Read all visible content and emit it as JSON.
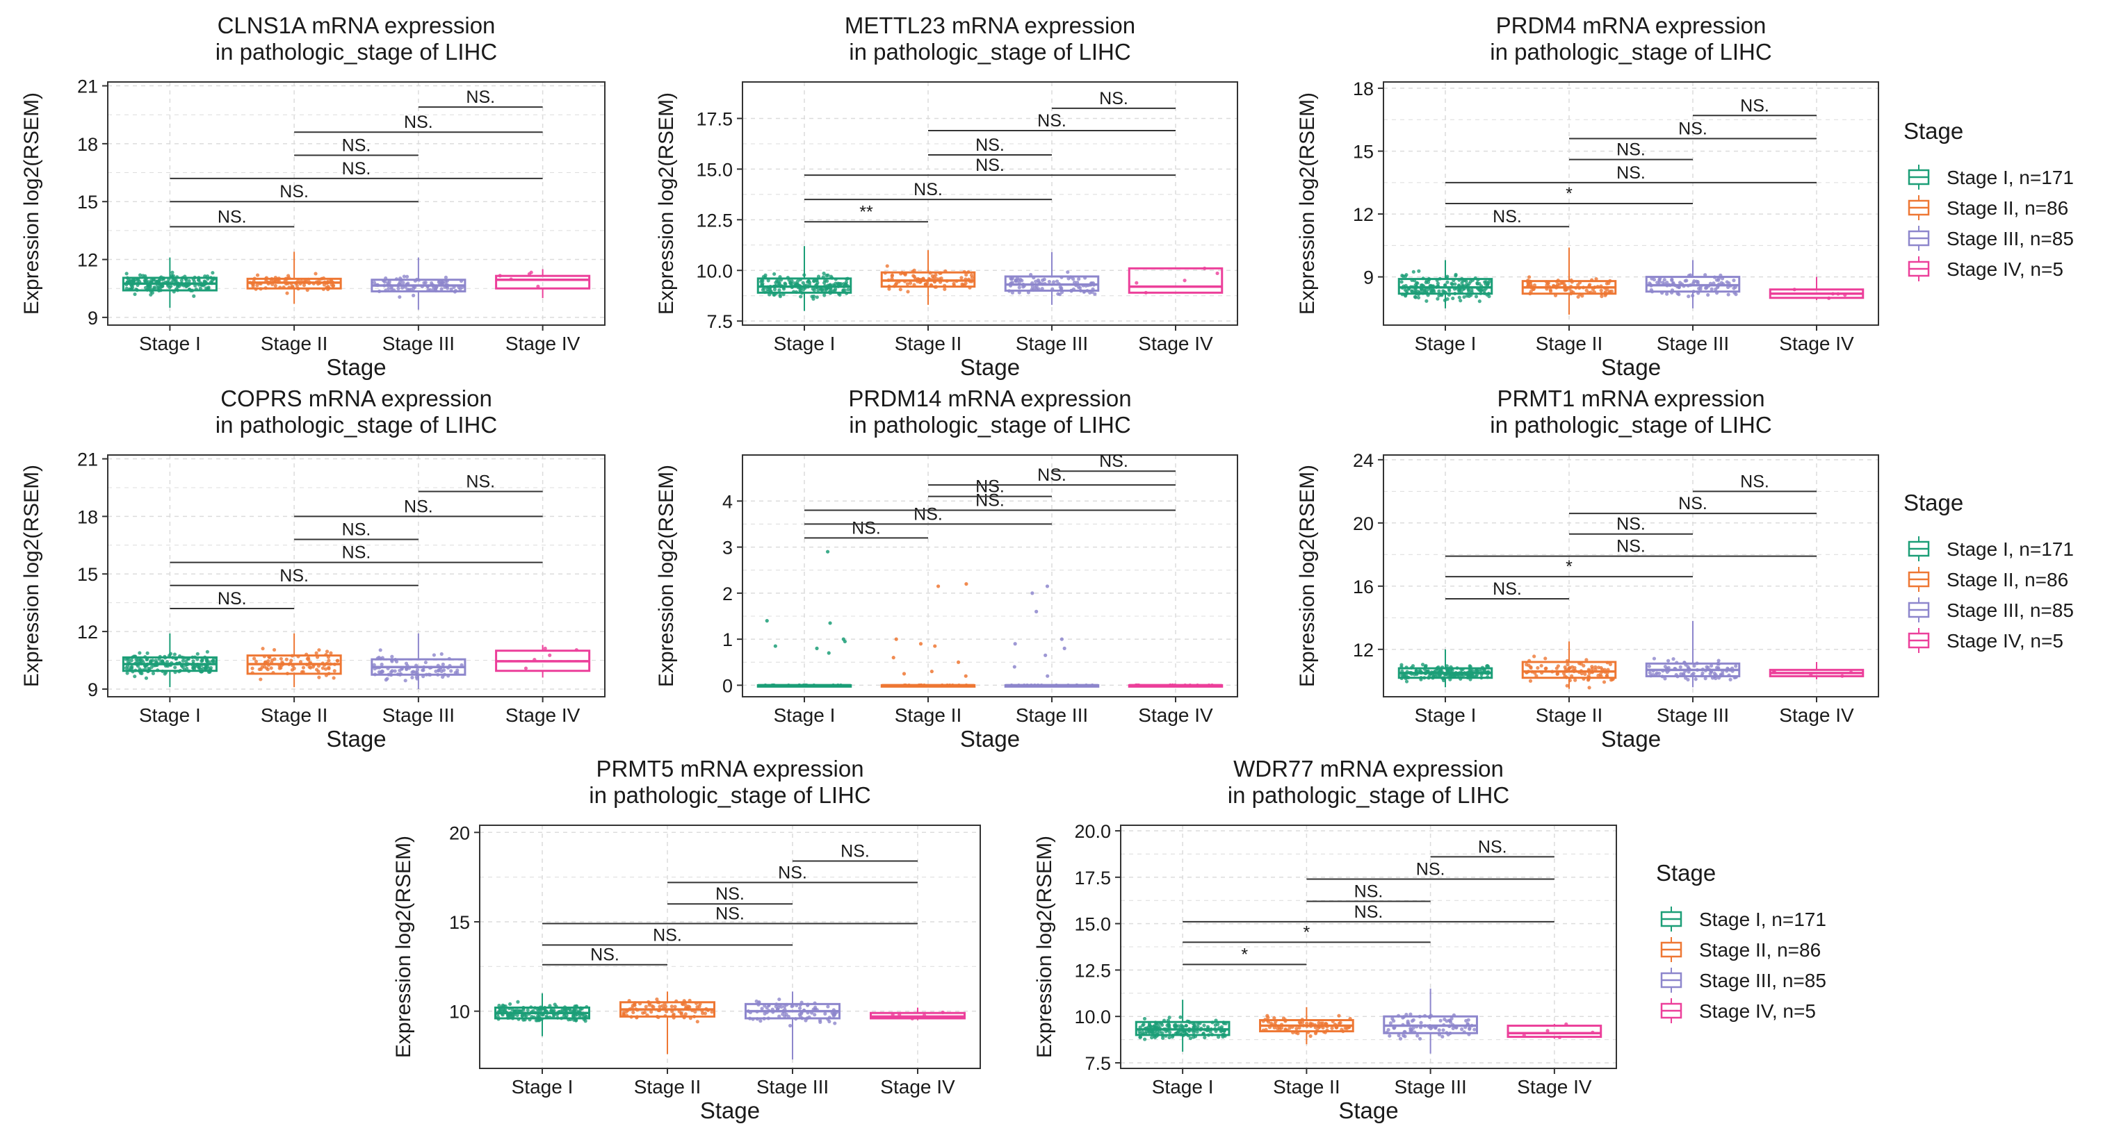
{
  "colors": {
    "stage_i": "#1b9e77",
    "stage_ii": "#ee7733",
    "stage_iii": "#8d86cc",
    "stage_iv": "#ec3f9a",
    "grid": "#dcdcdc",
    "panel_border": "#333333"
  },
  "legends": [
    {
      "title": "Stage",
      "items": [
        "Stage I, n=171",
        "Stage II, n=86",
        "Stage III, n=85",
        "Stage IV, n=5"
      ]
    },
    {
      "title": "Stage",
      "items": [
        "Stage I, n=171",
        "Stage II, n=86",
        "Stage III, n=85",
        "Stage IV, n=5"
      ]
    },
    {
      "title": "Stage",
      "items": [
        "Stage I, n=171",
        "Stage II, n=86",
        "Stage III, n=85",
        "Stage IV, n=5"
      ]
    }
  ],
  "chart_data": [
    {
      "type": "box",
      "title": [
        "CLNS1A mRNA expression",
        "in pathologic_stage of LIHC"
      ],
      "xlabel": "Stage",
      "ylabel": "Expression log2(RSEM)",
      "categories": [
        "Stage I",
        "Stage II",
        "Stage III",
        "Stage IV"
      ],
      "ylim": [
        8.6,
        21.2
      ],
      "yticks": [
        9,
        12,
        15,
        18,
        21
      ],
      "ytick_labels": [
        "9",
        "12",
        "15",
        "18",
        "21"
      ],
      "boxes": [
        {
          "low": 9.5,
          "q1": 10.4,
          "median": 10.75,
          "q3": 11.05,
          "high": 12.1
        },
        {
          "low": 9.7,
          "q1": 10.5,
          "median": 10.8,
          "q3": 11.0,
          "high": 12.4
        },
        {
          "low": 9.4,
          "q1": 10.35,
          "median": 10.65,
          "q3": 10.95,
          "high": 12.1
        },
        {
          "low": 10.0,
          "q1": 10.5,
          "median": 10.95,
          "q3": 11.15,
          "high": 11.5
        }
      ],
      "comparisons": [
        {
          "a": 0,
          "b": 1,
          "y": 13.7,
          "label": "NS."
        },
        {
          "a": 0,
          "b": 2,
          "y": 15.0,
          "label": "NS."
        },
        {
          "a": 0,
          "b": 3,
          "y": 16.2,
          "label": "NS."
        },
        {
          "a": 1,
          "b": 2,
          "y": 17.4,
          "label": "NS."
        },
        {
          "a": 1,
          "b": 3,
          "y": 18.6,
          "label": "NS."
        },
        {
          "a": 2,
          "b": 3,
          "y": 19.9,
          "label": "NS."
        }
      ]
    },
    {
      "type": "box",
      "title": [
        "METTL23 mRNA expression",
        "in pathologic_stage of LIHC"
      ],
      "xlabel": "Stage",
      "ylabel": "Expression log2(RSEM)",
      "categories": [
        "Stage I",
        "Stage II",
        "Stage III",
        "Stage IV"
      ],
      "ylim": [
        7.3,
        19.3
      ],
      "yticks": [
        7.5,
        10,
        12.5,
        15,
        17.5
      ],
      "ytick_labels": [
        "7.5",
        "10.0",
        "12.5",
        "15.0",
        "17.5"
      ],
      "boxes": [
        {
          "low": 8.0,
          "q1": 8.9,
          "median": 9.2,
          "q3": 9.6,
          "high": 11.2
        },
        {
          "low": 8.3,
          "q1": 9.2,
          "median": 9.5,
          "q3": 9.9,
          "high": 11.0
        },
        {
          "low": 8.3,
          "q1": 9.0,
          "median": 9.3,
          "q3": 9.7,
          "high": 10.9
        },
        {
          "low": 8.9,
          "q1": 8.9,
          "median": 9.2,
          "q3": 10.1,
          "high": 10.1
        }
      ],
      "comparisons": [
        {
          "a": 0,
          "b": 1,
          "y": 12.4,
          "label": "**"
        },
        {
          "a": 0,
          "b": 2,
          "y": 13.5,
          "label": "NS."
        },
        {
          "a": 0,
          "b": 3,
          "y": 14.7,
          "label": "NS."
        },
        {
          "a": 1,
          "b": 2,
          "y": 15.7,
          "label": "NS."
        },
        {
          "a": 1,
          "b": 3,
          "y": 16.9,
          "label": "NS."
        },
        {
          "a": 2,
          "b": 3,
          "y": 18.0,
          "label": "NS."
        }
      ]
    },
    {
      "type": "box",
      "title": [
        "PRDM4 mRNA expression",
        "in pathologic_stage of LIHC"
      ],
      "xlabel": "Stage",
      "ylabel": "Expression log2(RSEM)",
      "categories": [
        "Stage I",
        "Stage II",
        "Stage III",
        "Stage IV"
      ],
      "ylim": [
        6.7,
        18.3
      ],
      "yticks": [
        9,
        12,
        15,
        18
      ],
      "ytick_labels": [
        "9",
        "12",
        "15",
        "18"
      ],
      "boxes": [
        {
          "low": 7.5,
          "q1": 8.2,
          "median": 8.5,
          "q3": 8.9,
          "high": 9.8
        },
        {
          "low": 7.2,
          "q1": 8.2,
          "median": 8.5,
          "q3": 8.8,
          "high": 10.4
        },
        {
          "low": 7.5,
          "q1": 8.3,
          "median": 8.6,
          "q3": 9.0,
          "high": 9.8
        },
        {
          "low": 7.9,
          "q1": 8.0,
          "median": 8.2,
          "q3": 8.4,
          "high": 9.0
        }
      ],
      "comparisons": [
        {
          "a": 0,
          "b": 1,
          "y": 11.4,
          "label": "NS."
        },
        {
          "a": 0,
          "b": 2,
          "y": 12.5,
          "label": "*"
        },
        {
          "a": 0,
          "b": 3,
          "y": 13.5,
          "label": "NS."
        },
        {
          "a": 1,
          "b": 2,
          "y": 14.6,
          "label": "NS."
        },
        {
          "a": 1,
          "b": 3,
          "y": 15.6,
          "label": "NS."
        },
        {
          "a": 2,
          "b": 3,
          "y": 16.7,
          "label": "NS."
        }
      ]
    },
    {
      "type": "box",
      "title": [
        "COPRS mRNA expression",
        "in pathologic_stage of LIHC"
      ],
      "xlabel": "Stage",
      "ylabel": "Expression log2(RSEM)",
      "categories": [
        "Stage I",
        "Stage II",
        "Stage III",
        "Stage IV"
      ],
      "ylim": [
        8.6,
        21.2
      ],
      "yticks": [
        9,
        12,
        15,
        18,
        21
      ],
      "ytick_labels": [
        "9",
        "12",
        "15",
        "18",
        "21"
      ],
      "boxes": [
        {
          "low": 9.1,
          "q1": 9.95,
          "median": 10.3,
          "q3": 10.65,
          "high": 11.9
        },
        {
          "low": 9.1,
          "q1": 9.8,
          "median": 10.3,
          "q3": 10.75,
          "high": 11.9
        },
        {
          "low": 9.0,
          "q1": 9.75,
          "median": 10.15,
          "q3": 10.55,
          "high": 11.9
        },
        {
          "low": 9.6,
          "q1": 9.95,
          "median": 10.45,
          "q3": 11.0,
          "high": 11.3
        }
      ],
      "comparisons": [
        {
          "a": 0,
          "b": 1,
          "y": 13.2,
          "label": "NS."
        },
        {
          "a": 0,
          "b": 2,
          "y": 14.4,
          "label": "NS."
        },
        {
          "a": 0,
          "b": 3,
          "y": 15.6,
          "label": "NS."
        },
        {
          "a": 1,
          "b": 2,
          "y": 16.8,
          "label": "NS."
        },
        {
          "a": 1,
          "b": 3,
          "y": 18.0,
          "label": "NS."
        },
        {
          "a": 2,
          "b": 3,
          "y": 19.3,
          "label": "NS."
        }
      ]
    },
    {
      "type": "box",
      "title": [
        "PRDM14 mRNA expression",
        "in pathologic_stage of LIHC"
      ],
      "xlabel": "Stage",
      "ylabel": "Expression log2(RSEM)",
      "categories": [
        "Stage I",
        "Stage II",
        "Stage III",
        "Stage IV"
      ],
      "ylim": [
        -0.25,
        5.0
      ],
      "yticks": [
        0,
        1,
        2,
        3,
        4
      ],
      "ytick_labels": [
        "0",
        "1",
        "2",
        "3",
        "4"
      ],
      "boxes": [
        {
          "low": 0,
          "q1": 0,
          "median": 0,
          "q3": 0,
          "high": 0
        },
        {
          "low": 0,
          "q1": 0,
          "median": 0,
          "q3": 0,
          "high": 0
        },
        {
          "low": 0,
          "q1": 0,
          "median": 0,
          "q3": 0,
          "high": 0
        },
        {
          "low": 0,
          "q1": 0,
          "median": 0,
          "q3": 0,
          "high": 0
        }
      ],
      "comparisons": [
        {
          "a": 0,
          "b": 1,
          "y": 3.2,
          "label": "NS."
        },
        {
          "a": 0,
          "b": 2,
          "y": 3.5,
          "label": "NS."
        },
        {
          "a": 0,
          "b": 3,
          "y": 3.8,
          "label": "NS."
        },
        {
          "a": 1,
          "b": 2,
          "y": 4.1,
          "label": "NS."
        },
        {
          "a": 1,
          "b": 3,
          "y": 4.35,
          "label": "NS."
        },
        {
          "a": 2,
          "b": 3,
          "y": 4.65,
          "label": "NS."
        }
      ]
    },
    {
      "type": "box",
      "title": [
        "PRMT1 mRNA expression",
        "in pathologic_stage of LIHC"
      ],
      "xlabel": "Stage",
      "ylabel": "Expression log2(RSEM)",
      "categories": [
        "Stage I",
        "Stage II",
        "Stage III",
        "Stage IV"
      ],
      "ylim": [
        9.0,
        24.3
      ],
      "yticks": [
        12,
        16,
        20,
        24
      ],
      "ytick_labels": [
        "12",
        "16",
        "20",
        "24"
      ],
      "boxes": [
        {
          "low": 9.6,
          "q1": 10.2,
          "median": 10.5,
          "q3": 10.8,
          "high": 12.0
        },
        {
          "low": 9.5,
          "q1": 10.2,
          "median": 10.6,
          "q3": 11.2,
          "high": 12.5
        },
        {
          "low": 9.6,
          "q1": 10.3,
          "median": 10.7,
          "q3": 11.1,
          "high": 13.8
        },
        {
          "low": 10.1,
          "q1": 10.3,
          "median": 10.5,
          "q3": 10.7,
          "high": 11.2
        }
      ],
      "comparisons": [
        {
          "a": 0,
          "b": 1,
          "y": 15.2,
          "label": "NS."
        },
        {
          "a": 0,
          "b": 2,
          "y": 16.6,
          "label": "*"
        },
        {
          "a": 0,
          "b": 3,
          "y": 17.9,
          "label": "NS."
        },
        {
          "a": 1,
          "b": 2,
          "y": 19.3,
          "label": "NS."
        },
        {
          "a": 1,
          "b": 3,
          "y": 20.6,
          "label": "NS."
        },
        {
          "a": 2,
          "b": 3,
          "y": 22.0,
          "label": "NS."
        }
      ]
    },
    {
      "type": "box",
      "title": [
        "PRMT5 mRNA expression",
        "in pathologic_stage of LIHC"
      ],
      "xlabel": "Stage",
      "ylabel": "Expression log2(RSEM)",
      "categories": [
        "Stage I",
        "Stage II",
        "Stage III",
        "Stage IV"
      ],
      "ylim": [
        6.8,
        20.4
      ],
      "yticks": [
        10,
        15,
        20
      ],
      "ytick_labels": [
        "10",
        "15",
        "20"
      ],
      "boxes": [
        {
          "low": 8.6,
          "q1": 9.6,
          "median": 9.9,
          "q3": 10.2,
          "high": 11.0
        },
        {
          "low": 7.6,
          "q1": 9.7,
          "median": 10.1,
          "q3": 10.5,
          "high": 11.1
        },
        {
          "low": 7.3,
          "q1": 9.6,
          "median": 10.0,
          "q3": 10.4,
          "high": 11.1
        },
        {
          "low": 9.5,
          "q1": 9.6,
          "median": 9.7,
          "q3": 9.9,
          "high": 10.2
        }
      ],
      "comparisons": [
        {
          "a": 0,
          "b": 1,
          "y": 12.6,
          "label": "NS."
        },
        {
          "a": 0,
          "b": 2,
          "y": 13.7,
          "label": "NS."
        },
        {
          "a": 0,
          "b": 3,
          "y": 14.9,
          "label": "NS."
        },
        {
          "a": 1,
          "b": 2,
          "y": 16.0,
          "label": "NS."
        },
        {
          "a": 1,
          "b": 3,
          "y": 17.2,
          "label": "NS."
        },
        {
          "a": 2,
          "b": 3,
          "y": 18.4,
          "label": "NS."
        }
      ]
    },
    {
      "type": "box",
      "title": [
        "WDR77 mRNA expression",
        "in pathologic_stage of LIHC"
      ],
      "xlabel": "Stage",
      "ylabel": "Expression log2(RSEM)",
      "categories": [
        "Stage I",
        "Stage II",
        "Stage III",
        "Stage IV"
      ],
      "ylim": [
        7.2,
        20.3
      ],
      "yticks": [
        7.5,
        10,
        12.5,
        15,
        17.5,
        20
      ],
      "ytick_labels": [
        "7.5",
        "10.0",
        "12.5",
        "15.0",
        "17.5",
        "20.0"
      ],
      "boxes": [
        {
          "low": 8.1,
          "q1": 9.0,
          "median": 9.3,
          "q3": 9.7,
          "high": 10.9
        },
        {
          "low": 8.5,
          "q1": 9.2,
          "median": 9.5,
          "q3": 9.8,
          "high": 10.5
        },
        {
          "low": 8.0,
          "q1": 9.1,
          "median": 9.5,
          "q3": 10.0,
          "high": 11.5
        },
        {
          "low": 8.8,
          "q1": 8.9,
          "median": 9.1,
          "q3": 9.5,
          "high": 9.6
        }
      ],
      "comparisons": [
        {
          "a": 0,
          "b": 1,
          "y": 12.8,
          "label": "*"
        },
        {
          "a": 0,
          "b": 2,
          "y": 14.0,
          "label": "*"
        },
        {
          "a": 0,
          "b": 3,
          "y": 15.1,
          "label": "NS."
        },
        {
          "a": 1,
          "b": 2,
          "y": 16.2,
          "label": "NS."
        },
        {
          "a": 1,
          "b": 3,
          "y": 17.4,
          "label": "NS."
        },
        {
          "a": 2,
          "b": 3,
          "y": 18.6,
          "label": "NS."
        }
      ]
    }
  ]
}
